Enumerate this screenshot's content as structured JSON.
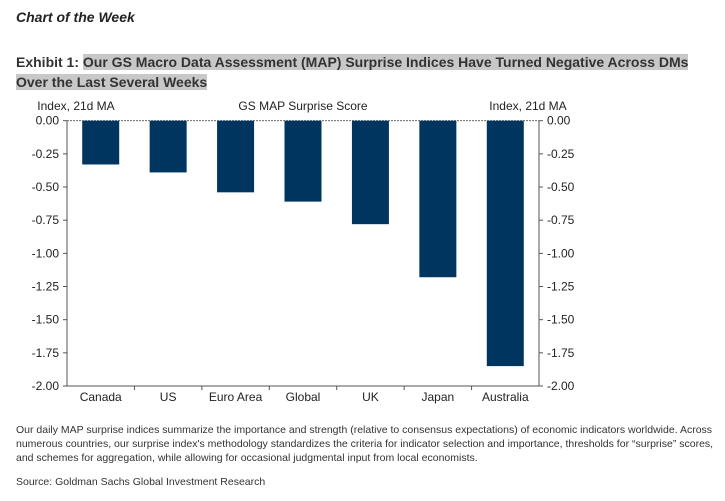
{
  "header": {
    "section": "Chart of the Week",
    "exhibit_label": "Exhibit 1:",
    "exhibit_title": "Our GS Macro Data Assessment (MAP) Surprise Indices Have Turned Negative Across DMs Over the Last Several Weeks"
  },
  "chart_data": {
    "type": "bar",
    "title": "GS MAP Surprise Score",
    "ylabel_left": "Index, 21d MA",
    "ylabel_right": "Index, 21d MA",
    "categories": [
      "Canada",
      "US",
      "Euro Area",
      "Global",
      "UK",
      "Japan",
      "Australia"
    ],
    "values": [
      -0.33,
      -0.39,
      -0.54,
      -0.61,
      -0.78,
      -1.18,
      -1.85
    ],
    "ylim": [
      -2.0,
      0.0
    ],
    "yticks": [
      "0.00",
      "-0.25",
      "-0.50",
      "-0.75",
      "-1.00",
      "-1.25",
      "-1.50",
      "-1.75",
      "-2.00"
    ],
    "ytick_values": [
      0,
      -0.25,
      -0.5,
      -0.75,
      -1.0,
      -1.25,
      -1.5,
      -1.75,
      -2.0
    ],
    "bar_color": "#00355f",
    "grid": false
  },
  "footer": {
    "note": "Our daily MAP surprise indices summarize the importance and strength (relative to consensus expectations) of economic indicators worldwide. Across numerous countries, our surprise index's methodology standardizes the criteria for indicator selection and importance, thresholds for “surprise” scores, and schemes for aggregation, while allowing for occasional judgmental input from local economists.",
    "source": "Source: Goldman Sachs Global Investment Research"
  }
}
